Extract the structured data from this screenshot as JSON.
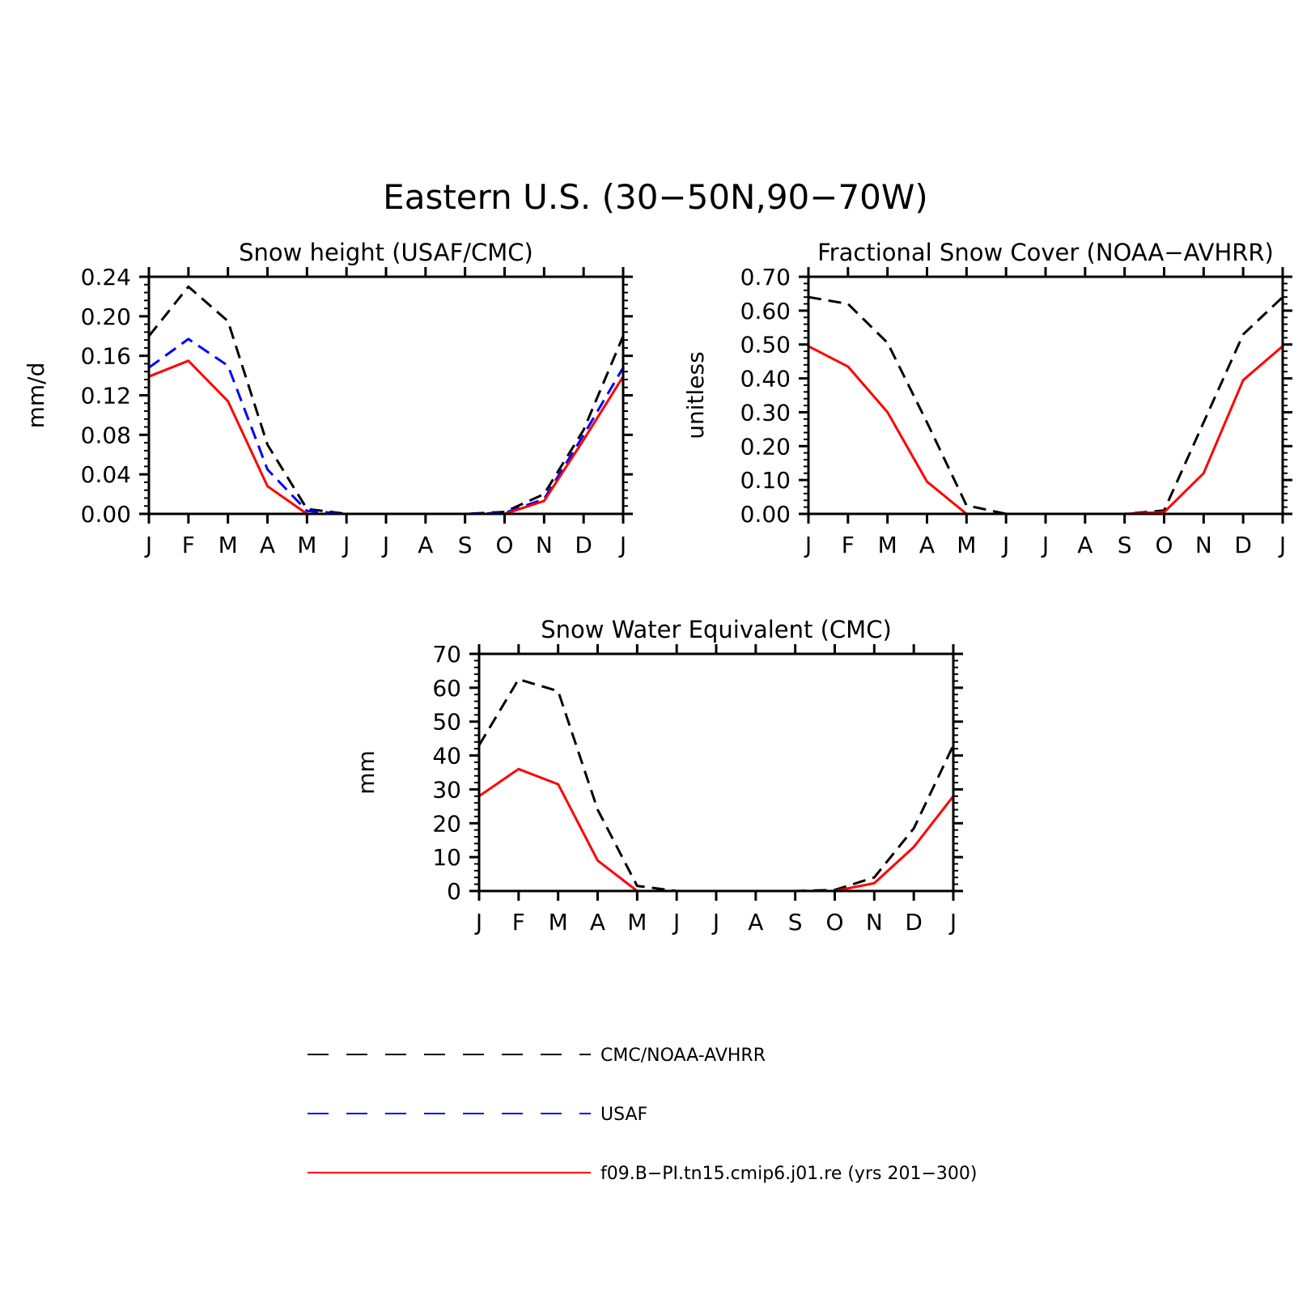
{
  "figure_title": "Eastern U.S. (30−50N,90−70W)",
  "legend": [
    {
      "label": "CMC/NOAA-AVHRR",
      "color": "#000000",
      "style": "dashed"
    },
    {
      "label": "USAF",
      "color": "#0000ff",
      "style": "dashed"
    },
    {
      "label": "f09.B−PI.tn15.cmip6.j01.re (yrs 201−300)",
      "color": "#ff0000",
      "style": "solid"
    }
  ],
  "chart_data": [
    {
      "type": "line",
      "title": "Snow height (USAF/CMC)",
      "xlabel": "",
      "ylabel": "mm/d",
      "categories": [
        "J",
        "F",
        "M",
        "A",
        "M",
        "J",
        "J",
        "A",
        "S",
        "O",
        "N",
        "D",
        "J"
      ],
      "ylim": [
        0,
        0.24
      ],
      "yticks": [
        "0.00",
        "0.04",
        "0.08",
        "0.12",
        "0.16",
        "0.20",
        "0.24"
      ],
      "series": [
        {
          "name": "CMC/NOAA-AVHRR",
          "color": "#000000",
          "dash": true,
          "values": [
            0.18,
            0.23,
            0.195,
            0.07,
            0.005,
            0.0,
            0.0,
            0.0,
            0.0,
            0.002,
            0.02,
            0.085,
            0.18
          ]
        },
        {
          "name": "USAF",
          "color": "#0000ff",
          "dash": true,
          "values": [
            0.148,
            0.177,
            0.15,
            0.045,
            0.003,
            0.0,
            0.0,
            0.0,
            0.0,
            0.001,
            0.015,
            0.08,
            0.148
          ]
        },
        {
          "name": "f09.B−PI.tn15.cmip6.j01.re (yrs 201−300)",
          "color": "#ff0000",
          "dash": false,
          "values": [
            0.139,
            0.155,
            0.114,
            0.028,
            0.0,
            0.0,
            0.0,
            0.0,
            0.0,
            0.0,
            0.013,
            0.075,
            0.139
          ]
        }
      ]
    },
    {
      "type": "line",
      "title": "Fractional Snow Cover (NOAA−AVHRR)",
      "xlabel": "",
      "ylabel": "unitless",
      "categories": [
        "J",
        "F",
        "M",
        "A",
        "M",
        "J",
        "J",
        "A",
        "S",
        "O",
        "N",
        "D",
        "J"
      ],
      "ylim": [
        0,
        0.7
      ],
      "yticks": [
        "0.00",
        "0.10",
        "0.20",
        "0.30",
        "0.40",
        "0.50",
        "0.60",
        "0.70"
      ],
      "series": [
        {
          "name": "CMC/NOAA-AVHRR",
          "color": "#000000",
          "dash": true,
          "values": [
            0.64,
            0.62,
            0.505,
            0.27,
            0.025,
            0.0,
            0.0,
            0.0,
            0.0,
            0.01,
            0.27,
            0.53,
            0.64
          ]
        },
        {
          "name": "f09.B−PI.tn15.cmip6.j01.re (yrs 201−300)",
          "color": "#ff0000",
          "dash": false,
          "values": [
            0.495,
            0.435,
            0.3,
            0.095,
            0.0,
            0.0,
            0.0,
            0.0,
            0.0,
            0.005,
            0.12,
            0.395,
            0.495
          ]
        }
      ]
    },
    {
      "type": "line",
      "title": "Snow Water Equivalent (CMC)",
      "xlabel": "",
      "ylabel": "mm",
      "categories": [
        "J",
        "F",
        "M",
        "A",
        "M",
        "J",
        "J",
        "A",
        "S",
        "O",
        "N",
        "D",
        "J"
      ],
      "ylim": [
        0,
        70
      ],
      "yticks": [
        "0",
        "10",
        "20",
        "30",
        "40",
        "50",
        "60",
        "70"
      ],
      "series": [
        {
          "name": "CMC/NOAA-AVHRR",
          "color": "#000000",
          "dash": true,
          "values": [
            43,
            62.5,
            59,
            24,
            1.5,
            0.0,
            0.0,
            0.0,
            0.0,
            0.3,
            4,
            18.5,
            43
          ]
        },
        {
          "name": "f09.B−PI.tn15.cmip6.j01.re (yrs 201−300)",
          "color": "#ff0000",
          "dash": false,
          "values": [
            28,
            36,
            31.5,
            9,
            0.0,
            0.0,
            0.0,
            0.0,
            0.0,
            0.0,
            2.3,
            13,
            28
          ]
        }
      ]
    }
  ]
}
